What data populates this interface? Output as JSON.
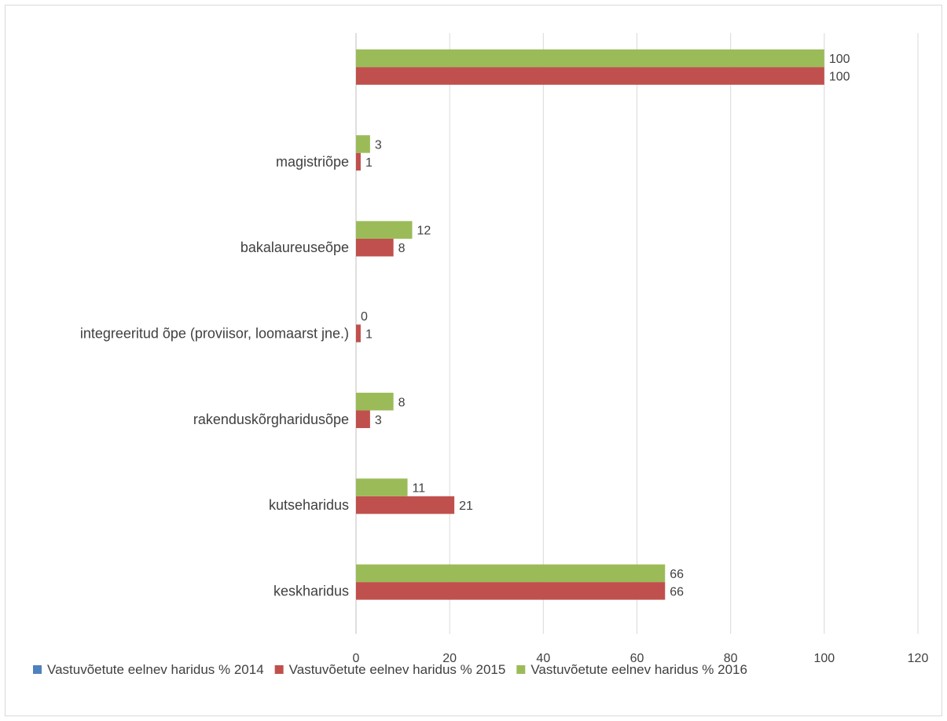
{
  "chart_data": {
    "type": "bar",
    "orientation": "horizontal",
    "categories": [
      "keskharidus",
      "kutseharidus",
      "rakenduskõrgharidusõpe",
      "integreeritud õpe (proviisor, loomaarst jne.)",
      "bakalaureuseõpe",
      "magistriõpe",
      ""
    ],
    "series": [
      {
        "name": "Vastuvõetute eelnev haridus % 2014",
        "color": "#4f81bd",
        "values": [
          null,
          null,
          null,
          null,
          null,
          null,
          null
        ]
      },
      {
        "name": "Vastuvõetute eelnev haridus % 2015",
        "color": "#c0504d",
        "values": [
          66,
          21,
          3,
          1,
          8,
          1,
          100
        ]
      },
      {
        "name": "Vastuvõetute eelnev haridus % 2016",
        "color": "#9bbb59",
        "values": [
          66,
          11,
          8,
          0,
          12,
          3,
          100
        ]
      }
    ],
    "xlim": [
      0,
      120
    ],
    "xticks": [
      0,
      20,
      40,
      60,
      80,
      100,
      120
    ],
    "grid": true,
    "legend": "bottom"
  }
}
